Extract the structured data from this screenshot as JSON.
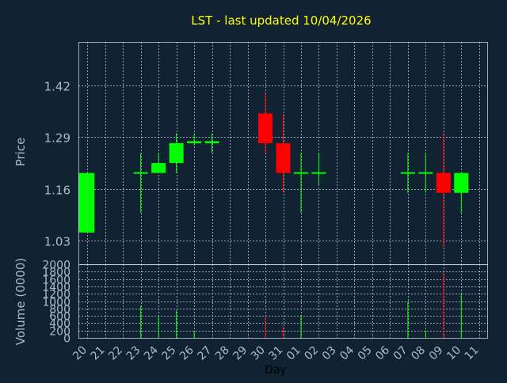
{
  "chart_data": {
    "type": "candlestick",
    "title": "LST - last updated 10/04/2026",
    "xlabel": "Day",
    "price_panel": {
      "ylabel": "Price",
      "ylim": [
        0.97,
        1.53
      ],
      "yticks": [
        "1.42",
        "1.29",
        "1.16",
        "1.03"
      ],
      "grid": true
    },
    "volume_panel": {
      "ylabel": "Volume (0000)",
      "ylim": [
        0,
        2000
      ],
      "yticks": [
        "2000",
        "1800",
        "1600",
        "1400",
        "1200",
        "1000",
        "800",
        "600",
        "400",
        "200",
        "0"
      ],
      "grid": true
    },
    "categories": [
      "20",
      "21",
      "22",
      "23",
      "24",
      "25",
      "26",
      "27",
      "28",
      "29",
      "30",
      "31",
      "01",
      "02",
      "03",
      "04",
      "05",
      "06",
      "07",
      "08",
      "09",
      "10",
      "11"
    ],
    "candles": [
      {
        "day": "20",
        "open": 1.05,
        "high": 1.2,
        "low": 1.05,
        "close": 1.2,
        "volume": 0
      },
      {
        "day": "23",
        "open": 1.2,
        "high": 1.25,
        "low": 1.1,
        "close": 1.2,
        "volume": 870
      },
      {
        "day": "24",
        "open": 1.2,
        "high": 1.25,
        "low": 1.2,
        "close": 1.225,
        "volume": 600
      },
      {
        "day": "25",
        "open": 1.225,
        "high": 1.3,
        "low": 1.2,
        "close": 1.275,
        "volume": 750
      },
      {
        "day": "26",
        "open": 1.275,
        "high": 1.3,
        "low": 1.27,
        "close": 1.28,
        "volume": 170
      },
      {
        "day": "27",
        "open": 1.275,
        "high": 1.3,
        "low": 1.25,
        "close": 1.28,
        "volume": 0
      },
      {
        "day": "30",
        "open": 1.35,
        "high": 1.4,
        "low": 1.25,
        "close": 1.275,
        "volume": 600
      },
      {
        "day": "31",
        "open": 1.275,
        "high": 1.35,
        "low": 1.15,
        "close": 1.2,
        "volume": 300
      },
      {
        "day": "01",
        "open": 1.2,
        "high": 1.25,
        "low": 1.1,
        "close": 1.2,
        "volume": 620
      },
      {
        "day": "02",
        "open": 1.2,
        "high": 1.25,
        "low": 1.17,
        "close": 1.2,
        "volume": 0
      },
      {
        "day": "07",
        "open": 1.2,
        "high": 1.25,
        "low": 1.15,
        "close": 1.2,
        "volume": 980
      },
      {
        "day": "08",
        "open": 1.2,
        "high": 1.25,
        "low": 1.15,
        "close": 1.2,
        "volume": 200
      },
      {
        "day": "09",
        "open": 1.2,
        "high": 1.3,
        "low": 1.01,
        "close": 1.15,
        "volume": 1780
      },
      {
        "day": "10",
        "open": 1.15,
        "high": 1.2,
        "low": 1.1,
        "close": 1.2,
        "volume": 1180
      }
    ],
    "colors": {
      "background": "#112233",
      "plot_border": "#ffffff",
      "grid": "#aabbcc",
      "text": "#aabbcc",
      "title": "#ffff00",
      "up": "#00ff00",
      "down": "#ff0000"
    }
  }
}
